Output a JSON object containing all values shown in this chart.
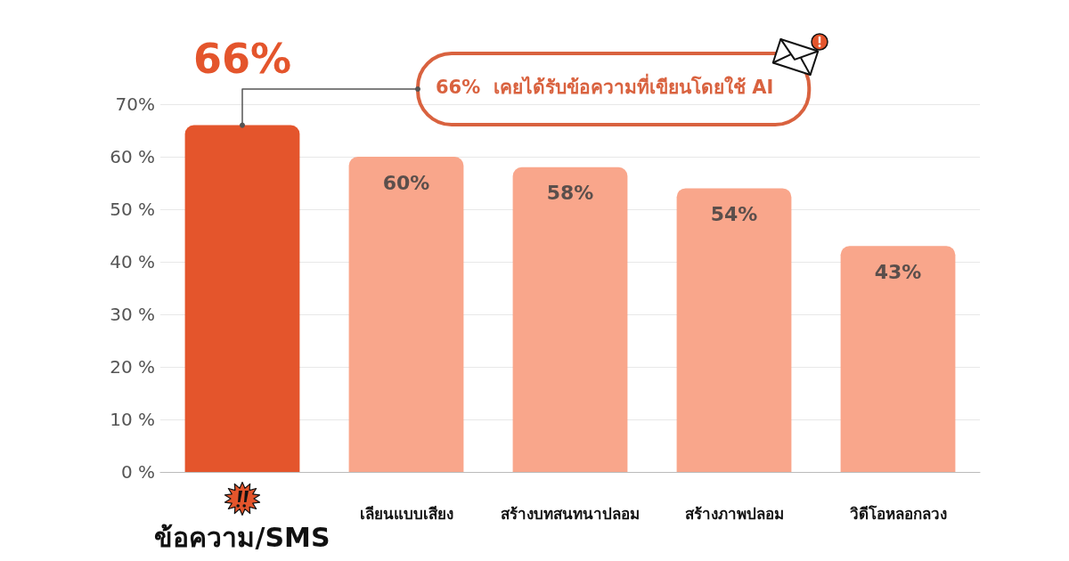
{
  "chart_data": {
    "type": "bar",
    "categories": [
      "ข้อความ/SMS",
      "เลียนแบบเสียง",
      "สร้างบทสนทนาปลอม",
      "สร้างภาพปลอม",
      "วิดีโอหลอกลวง"
    ],
    "values": [
      66,
      60,
      58,
      54,
      43
    ],
    "colors": [
      "#e4552c",
      "#f9a68b",
      "#f9a68b",
      "#f9a68b",
      "#f9a68b"
    ],
    "value_labels": [
      "66%",
      "60%",
      "58%",
      "54%",
      "43%"
    ],
    "ylim": [
      0,
      70
    ],
    "yticks": [
      {
        "value": 0,
        "label": "0 %"
      },
      {
        "value": 10,
        "label": "10 %"
      },
      {
        "value": 20,
        "label": "20 %"
      },
      {
        "value": 30,
        "label": "30 %"
      },
      {
        "value": 40,
        "label": "40 %"
      },
      {
        "value": 50,
        "label": "50 %"
      },
      {
        "value": 60,
        "label": "60 %"
      },
      {
        "value": 70,
        "label": "70%"
      }
    ],
    "grid": "y",
    "annotations": [
      {
        "text": "66%  เคยได้รับข้อความที่เขียนโดยใช้ AI",
        "x": "ข้อความ/SMS",
        "y": 66
      }
    ]
  }
}
